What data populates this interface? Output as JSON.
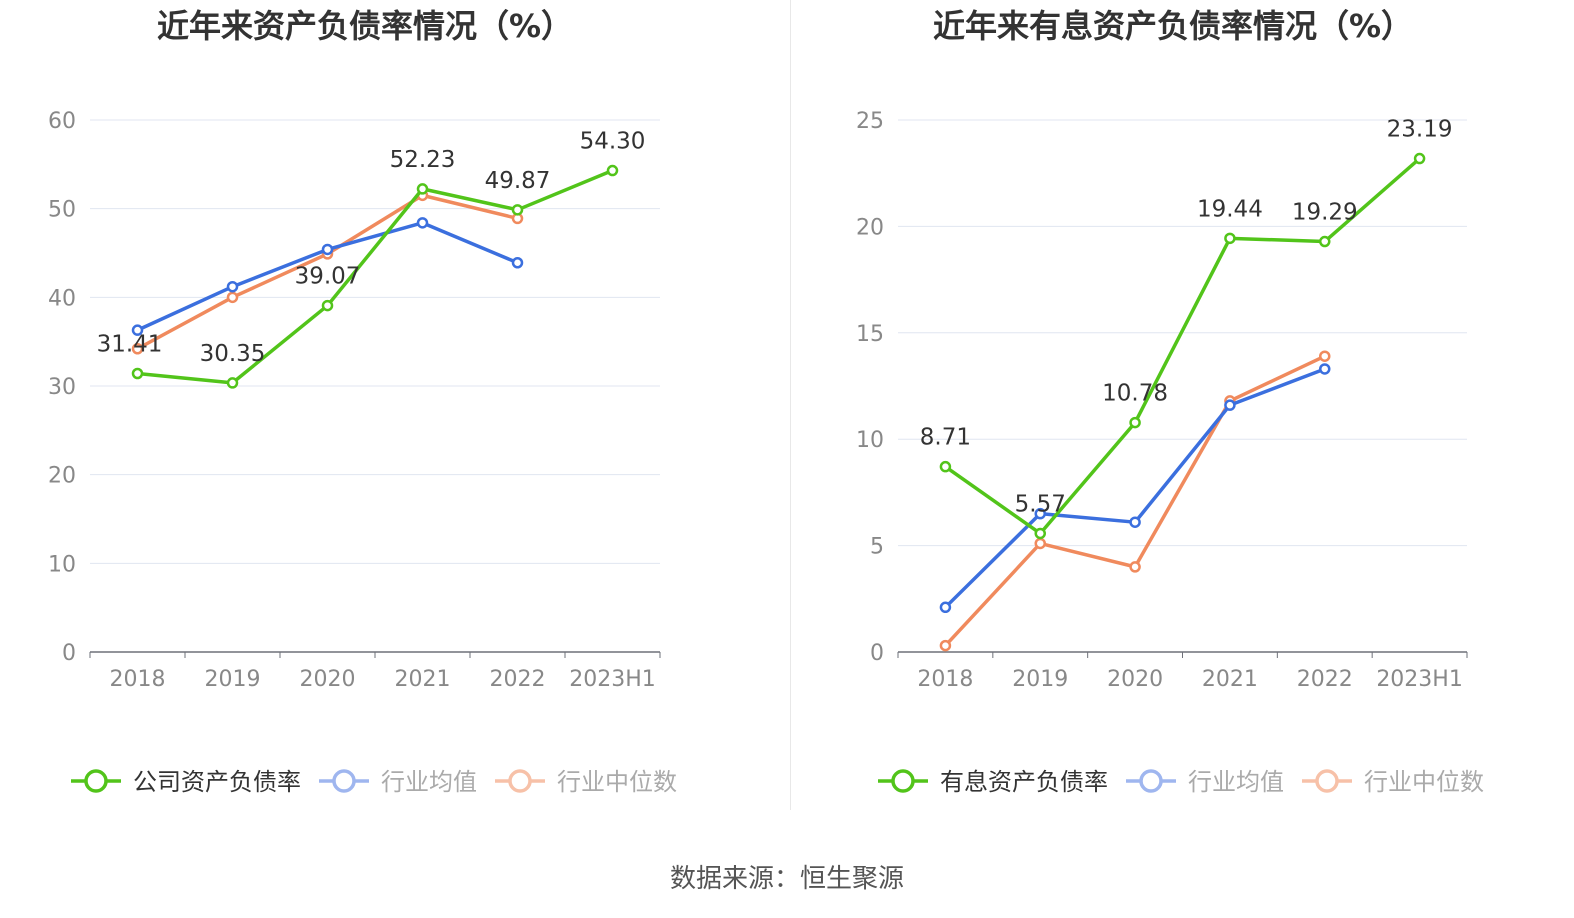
{
  "chart_data": [
    {
      "type": "line",
      "title": "近年来资产负债率情况（%）",
      "categories": [
        "2018",
        "2019",
        "2020",
        "2021",
        "2022",
        "2023H1"
      ],
      "ylim": [
        0,
        60
      ],
      "yticks": [
        "0",
        "10",
        "20",
        "30",
        "40",
        "50",
        "60"
      ],
      "grid": true,
      "legend_position": "bottom",
      "series": [
        {
          "name": "公司资产负债率",
          "color": "#52c41a",
          "values": [
            31.41,
            30.35,
            39.07,
            52.23,
            49.87,
            54.3
          ],
          "labels": [
            "31.41",
            "30.35",
            "39.07",
            "52.23",
            "49.87",
            "54.30"
          ]
        },
        {
          "name": "行业均值",
          "color": "#3b6fde",
          "values": [
            36.3,
            41.2,
            45.4,
            48.4,
            43.9,
            null
          ]
        },
        {
          "name": "行业中位数",
          "color": "#f08a5d",
          "values": [
            34.2,
            40.0,
            44.9,
            51.5,
            48.9,
            null
          ]
        }
      ]
    },
    {
      "type": "line",
      "title": "近年来有息资产负债率情况（%）",
      "categories": [
        "2018",
        "2019",
        "2020",
        "2021",
        "2022",
        "2023H1"
      ],
      "ylim": [
        0,
        25
      ],
      "yticks": [
        "0",
        "5",
        "10",
        "15",
        "20",
        "25"
      ],
      "grid": true,
      "legend_position": "bottom",
      "series": [
        {
          "name": "有息资产负债率",
          "color": "#52c41a",
          "values": [
            8.71,
            5.57,
            10.78,
            19.44,
            19.29,
            23.19
          ],
          "labels": [
            "8.71",
            "5.57",
            "10.78",
            "19.44",
            "19.29",
            "23.19"
          ]
        },
        {
          "name": "行业均值",
          "color": "#3b6fde",
          "values": [
            2.1,
            6.5,
            6.1,
            11.6,
            13.3,
            null
          ]
        },
        {
          "name": "行业中位数",
          "color": "#f08a5d",
          "values": [
            0.3,
            5.1,
            4.0,
            11.8,
            13.9,
            null
          ]
        }
      ]
    }
  ],
  "footer": {
    "source": "数据来源：恒生聚源"
  }
}
